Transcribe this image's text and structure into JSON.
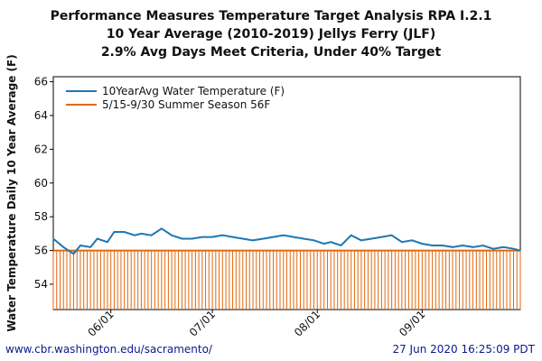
{
  "titles": {
    "line1": "Performance Measures Temperature Target Analysis RPA I.2.1",
    "line2": "10 Year Average (2010-2019) Jellys Ferry (JLF)",
    "line3": "2.9% Avg Days Meet Criteria, Under 40% Target"
  },
  "footer": {
    "left": "www.cbr.washington.edu/sacramento/",
    "right": "27 Jun 2020 16:25:09 PDT"
  },
  "colors": {
    "series_temp": "#1f77b4",
    "series_target": "#e06a10",
    "frame": "#000000",
    "grid": "#c8c8c8",
    "title_text": "#111111",
    "footer_text": "#0a1a8a"
  },
  "chart_data": {
    "type": "line",
    "ylabel": "Water Temperature Daily 10 Year Average (F)",
    "xlabel": "",
    "ylim": [
      52.5,
      66.3
    ],
    "yticks": [
      54,
      56,
      58,
      60,
      62,
      64,
      66
    ],
    "x_range": [
      "05-15",
      "09-30"
    ],
    "xticks": [
      {
        "date": "06-01",
        "label": "06/01"
      },
      {
        "date": "07-01",
        "label": "07/01"
      },
      {
        "date": "08-01",
        "label": "08/01"
      },
      {
        "date": "09-01",
        "label": "09/01"
      }
    ],
    "grid": true,
    "legend_position": "top-left",
    "series": [
      {
        "name": "10YearAvg Water Temperature (F)",
        "style": "line",
        "x": [
          "05-15",
          "05-18",
          "05-21",
          "05-23",
          "05-26",
          "05-28",
          "05-31",
          "06-02",
          "06-05",
          "06-08",
          "06-10",
          "06-13",
          "06-16",
          "06-19",
          "06-22",
          "06-25",
          "06-28",
          "07-01",
          "07-04",
          "07-07",
          "07-10",
          "07-13",
          "07-16",
          "07-19",
          "07-22",
          "07-25",
          "07-28",
          "07-31",
          "08-03",
          "08-05",
          "08-08",
          "08-11",
          "08-14",
          "08-17",
          "08-20",
          "08-23",
          "08-26",
          "08-29",
          "09-01",
          "09-04",
          "09-07",
          "09-10",
          "09-13",
          "09-16",
          "09-19",
          "09-22",
          "09-25",
          "09-28",
          "09-30"
        ],
        "y": [
          56.7,
          56.2,
          55.8,
          56.3,
          56.2,
          56.7,
          56.5,
          57.1,
          57.1,
          56.9,
          57.0,
          56.9,
          57.3,
          56.9,
          56.7,
          56.7,
          56.8,
          56.8,
          56.9,
          56.8,
          56.7,
          56.6,
          56.7,
          56.8,
          56.9,
          56.8,
          56.7,
          56.6,
          56.4,
          56.5,
          56.3,
          56.9,
          56.6,
          56.7,
          56.8,
          56.9,
          56.5,
          56.6,
          56.4,
          56.3,
          56.3,
          56.2,
          56.3,
          56.2,
          56.3,
          56.1,
          56.2,
          56.1,
          56.0
        ]
      },
      {
        "name": "5/15-9/30 Summer Season 56F",
        "style": "line_with_drops",
        "x": [
          "05-15",
          "09-30"
        ],
        "y": [
          56,
          56
        ],
        "drop_to": 52.5
      }
    ]
  }
}
